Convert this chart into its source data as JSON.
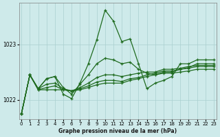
{
  "title": "Graphe pression niveau de la mer (hPa)",
  "background_color": "#ceeaea",
  "line_color": "#1f6b1f",
  "grid_color": "#aacfcf",
  "yticks": [
    1022,
    1023
  ],
  "ylim": [
    1021.65,
    1023.75
  ],
  "xlim": [
    -0.3,
    23.3
  ],
  "xticks": [
    0,
    1,
    2,
    3,
    4,
    5,
    6,
    7,
    8,
    9,
    10,
    11,
    12,
    13,
    14,
    15,
    16,
    17,
    18,
    19,
    20,
    21,
    22,
    23
  ],
  "series": [
    [
      1021.75,
      1022.45,
      1022.18,
      1022.18,
      1022.18,
      1022.18,
      1022.16,
      1022.18,
      1022.22,
      1022.27,
      1022.3,
      1022.3,
      1022.3,
      1022.35,
      1022.38,
      1022.42,
      1022.45,
      1022.48,
      1022.48,
      1022.5,
      1022.52,
      1022.55,
      1022.55,
      1022.55
    ],
    [
      1021.75,
      1022.45,
      1022.18,
      1022.22,
      1022.25,
      1022.18,
      1022.16,
      1022.2,
      1022.25,
      1022.32,
      1022.35,
      1022.35,
      1022.33,
      1022.38,
      1022.4,
      1022.45,
      1022.48,
      1022.52,
      1022.52,
      1022.55,
      1022.57,
      1022.6,
      1022.6,
      1022.6
    ],
    [
      1021.75,
      1022.45,
      1022.2,
      1022.28,
      1022.3,
      1022.2,
      1022.16,
      1022.22,
      1022.3,
      1022.4,
      1022.45,
      1022.45,
      1022.42,
      1022.45,
      1022.48,
      1022.5,
      1022.5,
      1022.55,
      1022.55,
      1022.57,
      1022.6,
      1022.62,
      1022.62,
      1022.62
    ],
    [
      1021.75,
      1022.45,
      1022.2,
      1022.38,
      1022.42,
      1022.22,
      1022.1,
      1022.28,
      1022.45,
      1022.65,
      1022.75,
      1022.72,
      1022.65,
      1022.68,
      1022.55,
      1022.48,
      1022.45,
      1022.5,
      1022.5,
      1022.55,
      1022.58,
      1022.65,
      1022.65,
      1022.65
    ],
    [
      1021.75,
      1022.45,
      1022.2,
      1022.38,
      1022.42,
      1022.1,
      1022.02,
      1022.3,
      1022.65,
      1023.08,
      1023.62,
      1023.42,
      1023.05,
      1023.1,
      1022.65,
      1022.2,
      1022.3,
      1022.35,
      1022.42,
      1022.65,
      1022.65,
      1022.72,
      1022.72,
      1022.72
    ]
  ]
}
